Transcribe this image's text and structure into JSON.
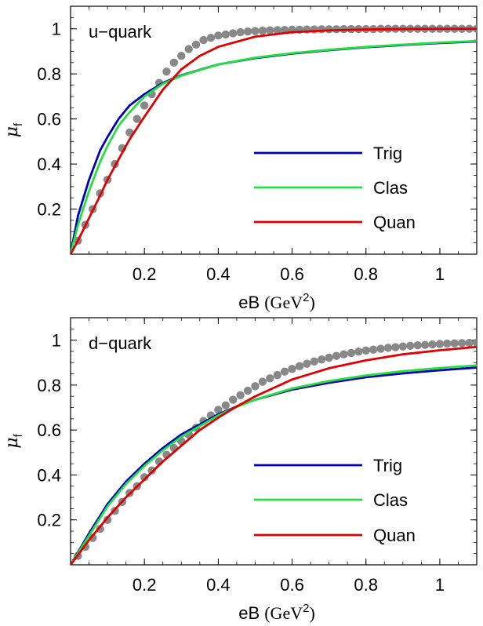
{
  "chart_data": [
    {
      "type": "line",
      "panel_label": "u−quark",
      "xlabel_main": "eB ",
      "xlabel_unit": "(GeV",
      "xlabel_sup": "2",
      "xlabel_close": ")",
      "ylabel_main": "μ",
      "ylabel_sub": "f",
      "xlim": [
        0,
        1.1
      ],
      "ylim": [
        0,
        1.1
      ],
      "xticks": [
        0.2,
        0.4,
        0.6,
        0.8,
        1
      ],
      "xtick_labels": [
        "0.2",
        "0.4",
        "0.6",
        "0.8",
        "1"
      ],
      "yticks": [
        0.2,
        0.4,
        0.6,
        0.8,
        1
      ],
      "ytick_labels": [
        "0.2",
        "0.4",
        "0.6",
        "0.8",
        "1"
      ],
      "legend_position": "lower-right",
      "series": [
        {
          "name": "Trig",
          "color": "#0000b4",
          "x": [
            0,
            0.02,
            0.05,
            0.08,
            0.1,
            0.13,
            0.16,
            0.2,
            0.25,
            0.3,
            0.4,
            0.5,
            0.6,
            0.7,
            0.8,
            0.9,
            1.0,
            1.1
          ],
          "y": [
            0,
            0.17,
            0.33,
            0.46,
            0.52,
            0.6,
            0.66,
            0.71,
            0.76,
            0.794,
            0.842,
            0.87,
            0.89,
            0.905,
            0.918,
            0.928,
            0.937,
            0.944
          ]
        },
        {
          "name": "Clas",
          "color": "#22e040",
          "x": [
            0,
            0.02,
            0.05,
            0.08,
            0.1,
            0.13,
            0.16,
            0.2,
            0.25,
            0.3,
            0.4,
            0.5,
            0.6,
            0.7,
            0.8,
            0.9,
            1.0,
            1.1
          ],
          "y": [
            0,
            0.13,
            0.28,
            0.41,
            0.48,
            0.57,
            0.63,
            0.7,
            0.756,
            0.792,
            0.842,
            0.872,
            0.892,
            0.907,
            0.92,
            0.93,
            0.939,
            0.946
          ]
        },
        {
          "name": "Quan",
          "color": "#e00000",
          "x": [
            0,
            0.02,
            0.05,
            0.08,
            0.1,
            0.13,
            0.16,
            0.2,
            0.25,
            0.3,
            0.35,
            0.4,
            0.5,
            0.6,
            0.7,
            0.8,
            0.9,
            1.0,
            1.1
          ],
          "y": [
            0,
            0.06,
            0.16,
            0.26,
            0.33,
            0.42,
            0.51,
            0.61,
            0.73,
            0.82,
            0.88,
            0.92,
            0.965,
            0.985,
            0.993,
            0.997,
            0.999,
            1.0,
            1.0
          ]
        },
        {
          "name": "",
          "color": "#888888",
          "style": "points",
          "x": [
            0.02,
            0.04,
            0.06,
            0.08,
            0.1,
            0.12,
            0.14,
            0.16,
            0.18,
            0.2,
            0.22,
            0.24,
            0.26,
            0.28,
            0.3,
            0.32,
            0.34,
            0.36,
            0.38,
            0.4,
            0.42,
            0.44,
            0.46,
            0.48,
            0.5,
            0.52,
            0.54,
            0.56,
            0.58,
            0.6,
            0.62,
            0.64,
            0.66,
            0.68,
            0.7,
            0.72,
            0.74,
            0.76,
            0.78,
            0.8,
            0.82,
            0.84,
            0.86,
            0.88,
            0.9,
            0.92,
            0.94,
            0.96,
            0.98,
            1.0,
            1.02,
            1.04,
            1.06,
            1.08,
            1.1
          ],
          "y": [
            0.06,
            0.13,
            0.2,
            0.27,
            0.33,
            0.4,
            0.47,
            0.54,
            0.6,
            0.66,
            0.71,
            0.76,
            0.81,
            0.85,
            0.88,
            0.91,
            0.93,
            0.95,
            0.96,
            0.97,
            0.975,
            0.98,
            0.985,
            0.988,
            0.99,
            0.992,
            0.993,
            0.994,
            0.995,
            0.996,
            0.996,
            0.997,
            0.997,
            0.998,
            0.998,
            0.998,
            0.999,
            0.999,
            0.999,
            0.999,
            0.999,
            1.0,
            1.0,
            1.0,
            1.0,
            1.0,
            1.0,
            1.0,
            1.0,
            1.0,
            1.0,
            1.0,
            1.0,
            1.0,
            1.0
          ]
        }
      ]
    },
    {
      "type": "line",
      "panel_label": "d−quark",
      "xlabel_main": "eB ",
      "xlabel_unit": "(GeV",
      "xlabel_sup": "2",
      "xlabel_close": ")",
      "ylabel_main": "μ",
      "ylabel_sub": "f",
      "xlim": [
        0,
        1.1
      ],
      "ylim": [
        0,
        1.1
      ],
      "xticks": [
        0.2,
        0.4,
        0.6,
        0.8,
        1
      ],
      "xtick_labels": [
        "0.2",
        "0.4",
        "0.6",
        "0.8",
        "1"
      ],
      "yticks": [
        0.2,
        0.4,
        0.6,
        0.8,
        1
      ],
      "ytick_labels": [
        "0.2",
        "0.4",
        "0.6",
        "0.8",
        "1"
      ],
      "legend_position": "lower-right",
      "series": [
        {
          "name": "Trig",
          "color": "#0000b4",
          "x": [
            0,
            0.05,
            0.1,
            0.15,
            0.2,
            0.25,
            0.3,
            0.4,
            0.45,
            0.5,
            0.6,
            0.7,
            0.8,
            0.9,
            1.0,
            1.1
          ],
          "y": [
            0,
            0.14,
            0.27,
            0.37,
            0.45,
            0.52,
            0.58,
            0.67,
            0.705,
            0.735,
            0.78,
            0.81,
            0.835,
            0.852,
            0.866,
            0.878
          ]
        },
        {
          "name": "Clas",
          "color": "#22e040",
          "x": [
            0,
            0.05,
            0.1,
            0.15,
            0.2,
            0.25,
            0.3,
            0.4,
            0.45,
            0.5,
            0.6,
            0.7,
            0.8,
            0.9,
            1.0,
            1.1
          ],
          "y": [
            0,
            0.13,
            0.26,
            0.36,
            0.44,
            0.51,
            0.57,
            0.665,
            0.703,
            0.735,
            0.785,
            0.818,
            0.843,
            0.862,
            0.876,
            0.888
          ]
        },
        {
          "name": "Quan",
          "color": "#e00000",
          "x": [
            0,
            0.05,
            0.1,
            0.15,
            0.2,
            0.25,
            0.3,
            0.35,
            0.4,
            0.45,
            0.5,
            0.6,
            0.7,
            0.8,
            0.9,
            1.0,
            1.1
          ],
          "y": [
            0,
            0.11,
            0.21,
            0.3,
            0.38,
            0.46,
            0.53,
            0.6,
            0.655,
            0.705,
            0.75,
            0.825,
            0.875,
            0.91,
            0.937,
            0.955,
            0.97
          ]
        },
        {
          "name": "",
          "color": "#888888",
          "style": "points",
          "x": [
            0.02,
            0.04,
            0.06,
            0.08,
            0.1,
            0.12,
            0.14,
            0.16,
            0.18,
            0.2,
            0.22,
            0.24,
            0.26,
            0.28,
            0.3,
            0.32,
            0.34,
            0.36,
            0.38,
            0.4,
            0.42,
            0.44,
            0.46,
            0.48,
            0.5,
            0.52,
            0.54,
            0.56,
            0.58,
            0.6,
            0.62,
            0.64,
            0.66,
            0.68,
            0.7,
            0.72,
            0.74,
            0.76,
            0.78,
            0.8,
            0.82,
            0.84,
            0.86,
            0.88,
            0.9,
            0.92,
            0.94,
            0.96,
            0.98,
            1.0,
            1.02,
            1.04,
            1.06,
            1.08,
            1.1
          ],
          "y": [
            0.04,
            0.08,
            0.12,
            0.16,
            0.2,
            0.24,
            0.28,
            0.32,
            0.35,
            0.39,
            0.42,
            0.46,
            0.49,
            0.52,
            0.55,
            0.58,
            0.61,
            0.64,
            0.665,
            0.69,
            0.71,
            0.735,
            0.755,
            0.775,
            0.795,
            0.815,
            0.83,
            0.845,
            0.86,
            0.872,
            0.884,
            0.895,
            0.905,
            0.914,
            0.922,
            0.93,
            0.937,
            0.943,
            0.949,
            0.954,
            0.958,
            0.962,
            0.966,
            0.969,
            0.972,
            0.975,
            0.977,
            0.979,
            0.981,
            0.983,
            0.985,
            0.986,
            0.987,
            0.988,
            0.989
          ]
        }
      ]
    }
  ]
}
